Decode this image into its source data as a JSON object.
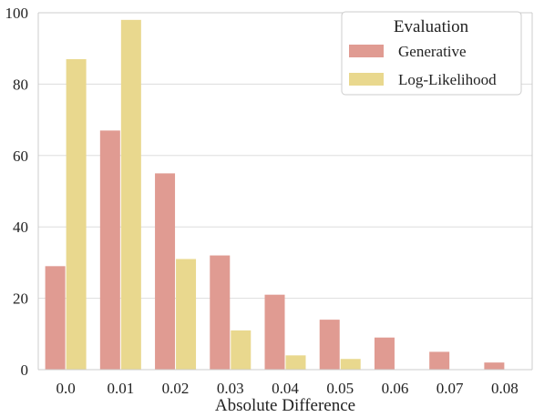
{
  "chart_data": {
    "type": "bar",
    "title": "",
    "xlabel": "Absolute Difference",
    "ylabel": "",
    "categories": [
      "0.0",
      "0.01",
      "0.02",
      "0.03",
      "0.04",
      "0.05",
      "0.06",
      "0.07",
      "0.08"
    ],
    "series": [
      {
        "name": "Generative",
        "values": [
          29,
          67,
          55,
          32,
          21,
          14,
          9,
          5,
          2
        ],
        "color": "#e09b92"
      },
      {
        "name": "Log-Likelihood",
        "values": [
          87,
          98,
          31,
          11,
          4,
          3,
          0,
          0,
          0
        ],
        "color": "#e9d88e"
      }
    ],
    "ylim": [
      0,
      100
    ],
    "yticks": [
      "0",
      "20",
      "40",
      "60",
      "80",
      "100"
    ],
    "grid": "horizontal",
    "legend": {
      "title": "Evaluation",
      "position": "top-right"
    }
  }
}
